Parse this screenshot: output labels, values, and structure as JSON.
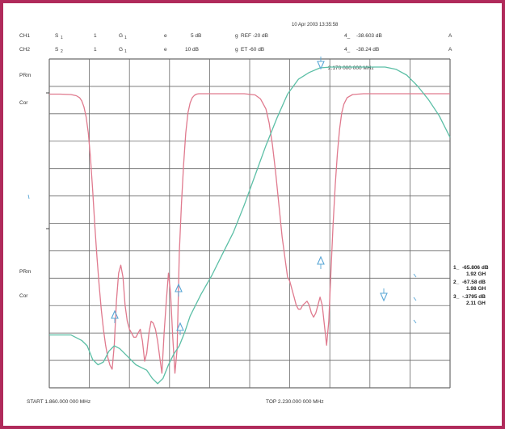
{
  "header": {
    "timestamp": "10 Apr 2003  13:35:58",
    "ch1": {
      "label": "CH1",
      "s": "S",
      "s_sub": "1",
      "col2": "1",
      "g": "G",
      "g_sub": "1",
      "mark": "e",
      "scale": "5 dB",
      "mark2": "g",
      "ref": "REF -20 dB",
      "m_idx": "4_",
      "m_val": "-38.603 dB",
      "trail": "A"
    },
    "ch2": {
      "label": "CH2",
      "s": "S",
      "s_sub": "2",
      "col2": "1",
      "g": "G",
      "g_sub": "1",
      "mark": "e",
      "scale": "10 dB",
      "mark2": "g",
      "ref": "ET -60 dB",
      "m_idx": "4_",
      "m_val": "-38.24 dB",
      "trail": "A"
    }
  },
  "labels": {
    "prm_top": "PRm",
    "cor_top": "Cor",
    "prm_bottom": "PRm",
    "cor_bottom": "Cor",
    "freq_marker": "2.170 000 000 MHz",
    "start": "START 1.860.000 000 MHz",
    "stop": "TOP 2.230.000 000 MHz"
  },
  "markers": [
    {
      "index": "1_",
      "value": "-65.806 dB",
      "freq": "1.92 GH"
    },
    {
      "index": "2_",
      "value": "-67.58 dB",
      "freq": "1.98 GH"
    },
    {
      "index": "3_",
      "value": "-.3795 dB",
      "freq": "2.11 GH"
    }
  ],
  "colors": {
    "frame": "#b02a5b",
    "grid": "#6a6a6a",
    "trace_red": "#e07a8e",
    "trace_teal": "#5cbfa6",
    "marker": "#5aa7d6"
  },
  "chart_data": {
    "type": "line",
    "xlim": [
      1860,
      2230
    ],
    "grid": true,
    "series": [
      {
        "channel": "CH1",
        "ylim": [
          -70,
          0
        ],
        "x": [
          1860,
          1870,
          1880,
          1885,
          1888,
          1890,
          1892,
          1894,
          1896,
          1898,
          1900,
          1902,
          1904,
          1906,
          1908,
          1910,
          1912,
          1914,
          1916,
          1918,
          1920,
          1922,
          1924,
          1926,
          1928,
          1930,
          1932,
          1934,
          1936,
          1938,
          1940,
          1942,
          1944,
          1946,
          1948,
          1950,
          1952,
          1954,
          1956,
          1958,
          1960,
          1962,
          1964,
          1966,
          1968,
          1970,
          1972,
          1974,
          1976,
          1978,
          1980,
          1982,
          1984,
          1986,
          1988,
          1990,
          1992,
          1994,
          1996,
          1998,
          2000,
          2005,
          2010,
          2015,
          2020,
          2030,
          2040,
          2050,
          2055,
          2060,
          2063,
          2066,
          2069,
          2072,
          2075,
          2078,
          2080,
          2082,
          2084,
          2086,
          2088,
          2090,
          2092,
          2094,
          2096,
          2098,
          2100,
          2102,
          2104,
          2106,
          2108,
          2110,
          2112,
          2114,
          2116,
          2118,
          2120,
          2122,
          2124,
          2126,
          2128,
          2130,
          2132,
          2135,
          2140,
          2150,
          2160,
          2170,
          2180,
          2190,
          2200,
          2210,
          2220,
          2230
        ],
        "y": [
          -0.3,
          -0.3,
          -0.4,
          -0.7,
          -1.2,
          -2,
          -3.5,
          -6,
          -10,
          -16,
          -24,
          -33,
          -41,
          -48,
          -54,
          -59,
          -63,
          -66,
          -68,
          -69,
          -63,
          -52,
          -45,
          -43,
          -46,
          -53,
          -57,
          -59,
          -60,
          -61,
          -61,
          -60,
          -59,
          -62,
          -67,
          -65,
          -60,
          -57,
          -57.5,
          -59,
          -62,
          -66,
          -70,
          -60,
          -52,
          -45,
          -50,
          -61,
          -70,
          -64,
          -40,
          -28,
          -18,
          -10,
          -5,
          -2.5,
          -1.2,
          -0.6,
          -0.3,
          -0.2,
          -0.2,
          -0.2,
          -0.2,
          -0.2,
          -0.2,
          -0.2,
          -0.2,
          -0.5,
          -1.5,
          -4,
          -7.5,
          -13,
          -20,
          -28,
          -36,
          -42,
          -46,
          -47,
          -49,
          -51,
          -53,
          -54,
          -54,
          -53,
          -52.5,
          -52,
          -53,
          -55,
          -56,
          -55,
          -53,
          -51,
          -53,
          -58,
          -63,
          -57,
          -45,
          -33,
          -23,
          -15,
          -9,
          -5,
          -2.8,
          -1.2,
          -0.4,
          -0.2,
          -0.2,
          -0.2,
          -0.2,
          -0.2,
          -0.2,
          -0.2,
          -0.2,
          -0.2
        ]
      },
      {
        "channel": "CH2",
        "ylim": [
          -120,
          0
        ],
        "x": [
          1860,
          1880,
          1890,
          1895,
          1900,
          1905,
          1910,
          1915,
          1920,
          1925,
          1930,
          1935,
          1940,
          1945,
          1950,
          1955,
          1960,
          1965,
          1970,
          1975,
          1980,
          1985,
          1990,
          1995,
          2000,
          2010,
          2020,
          2030,
          2040,
          2050,
          2060,
          2070,
          2080,
          2090,
          2100,
          2110,
          2120,
          2130,
          2140,
          2150,
          2160,
          2170,
          2180,
          2190,
          2200,
          2210,
          2220,
          2230
        ],
        "y": [
          -99,
          -99,
          -101,
          -103,
          -108,
          -110,
          -109,
          -105,
          -103,
          -104,
          -106,
          -108,
          -110,
          -111,
          -112,
          -115,
          -117,
          -115,
          -110,
          -106,
          -103,
          -98,
          -92,
          -88,
          -84,
          -77,
          -69,
          -61,
          -51,
          -40,
          -29,
          -19,
          -10,
          -4.5,
          -2,
          -0.3,
          0,
          0,
          0,
          0,
          0,
          0,
          -0.8,
          -3,
          -7,
          -12,
          -18,
          -26
        ]
      }
    ]
  }
}
